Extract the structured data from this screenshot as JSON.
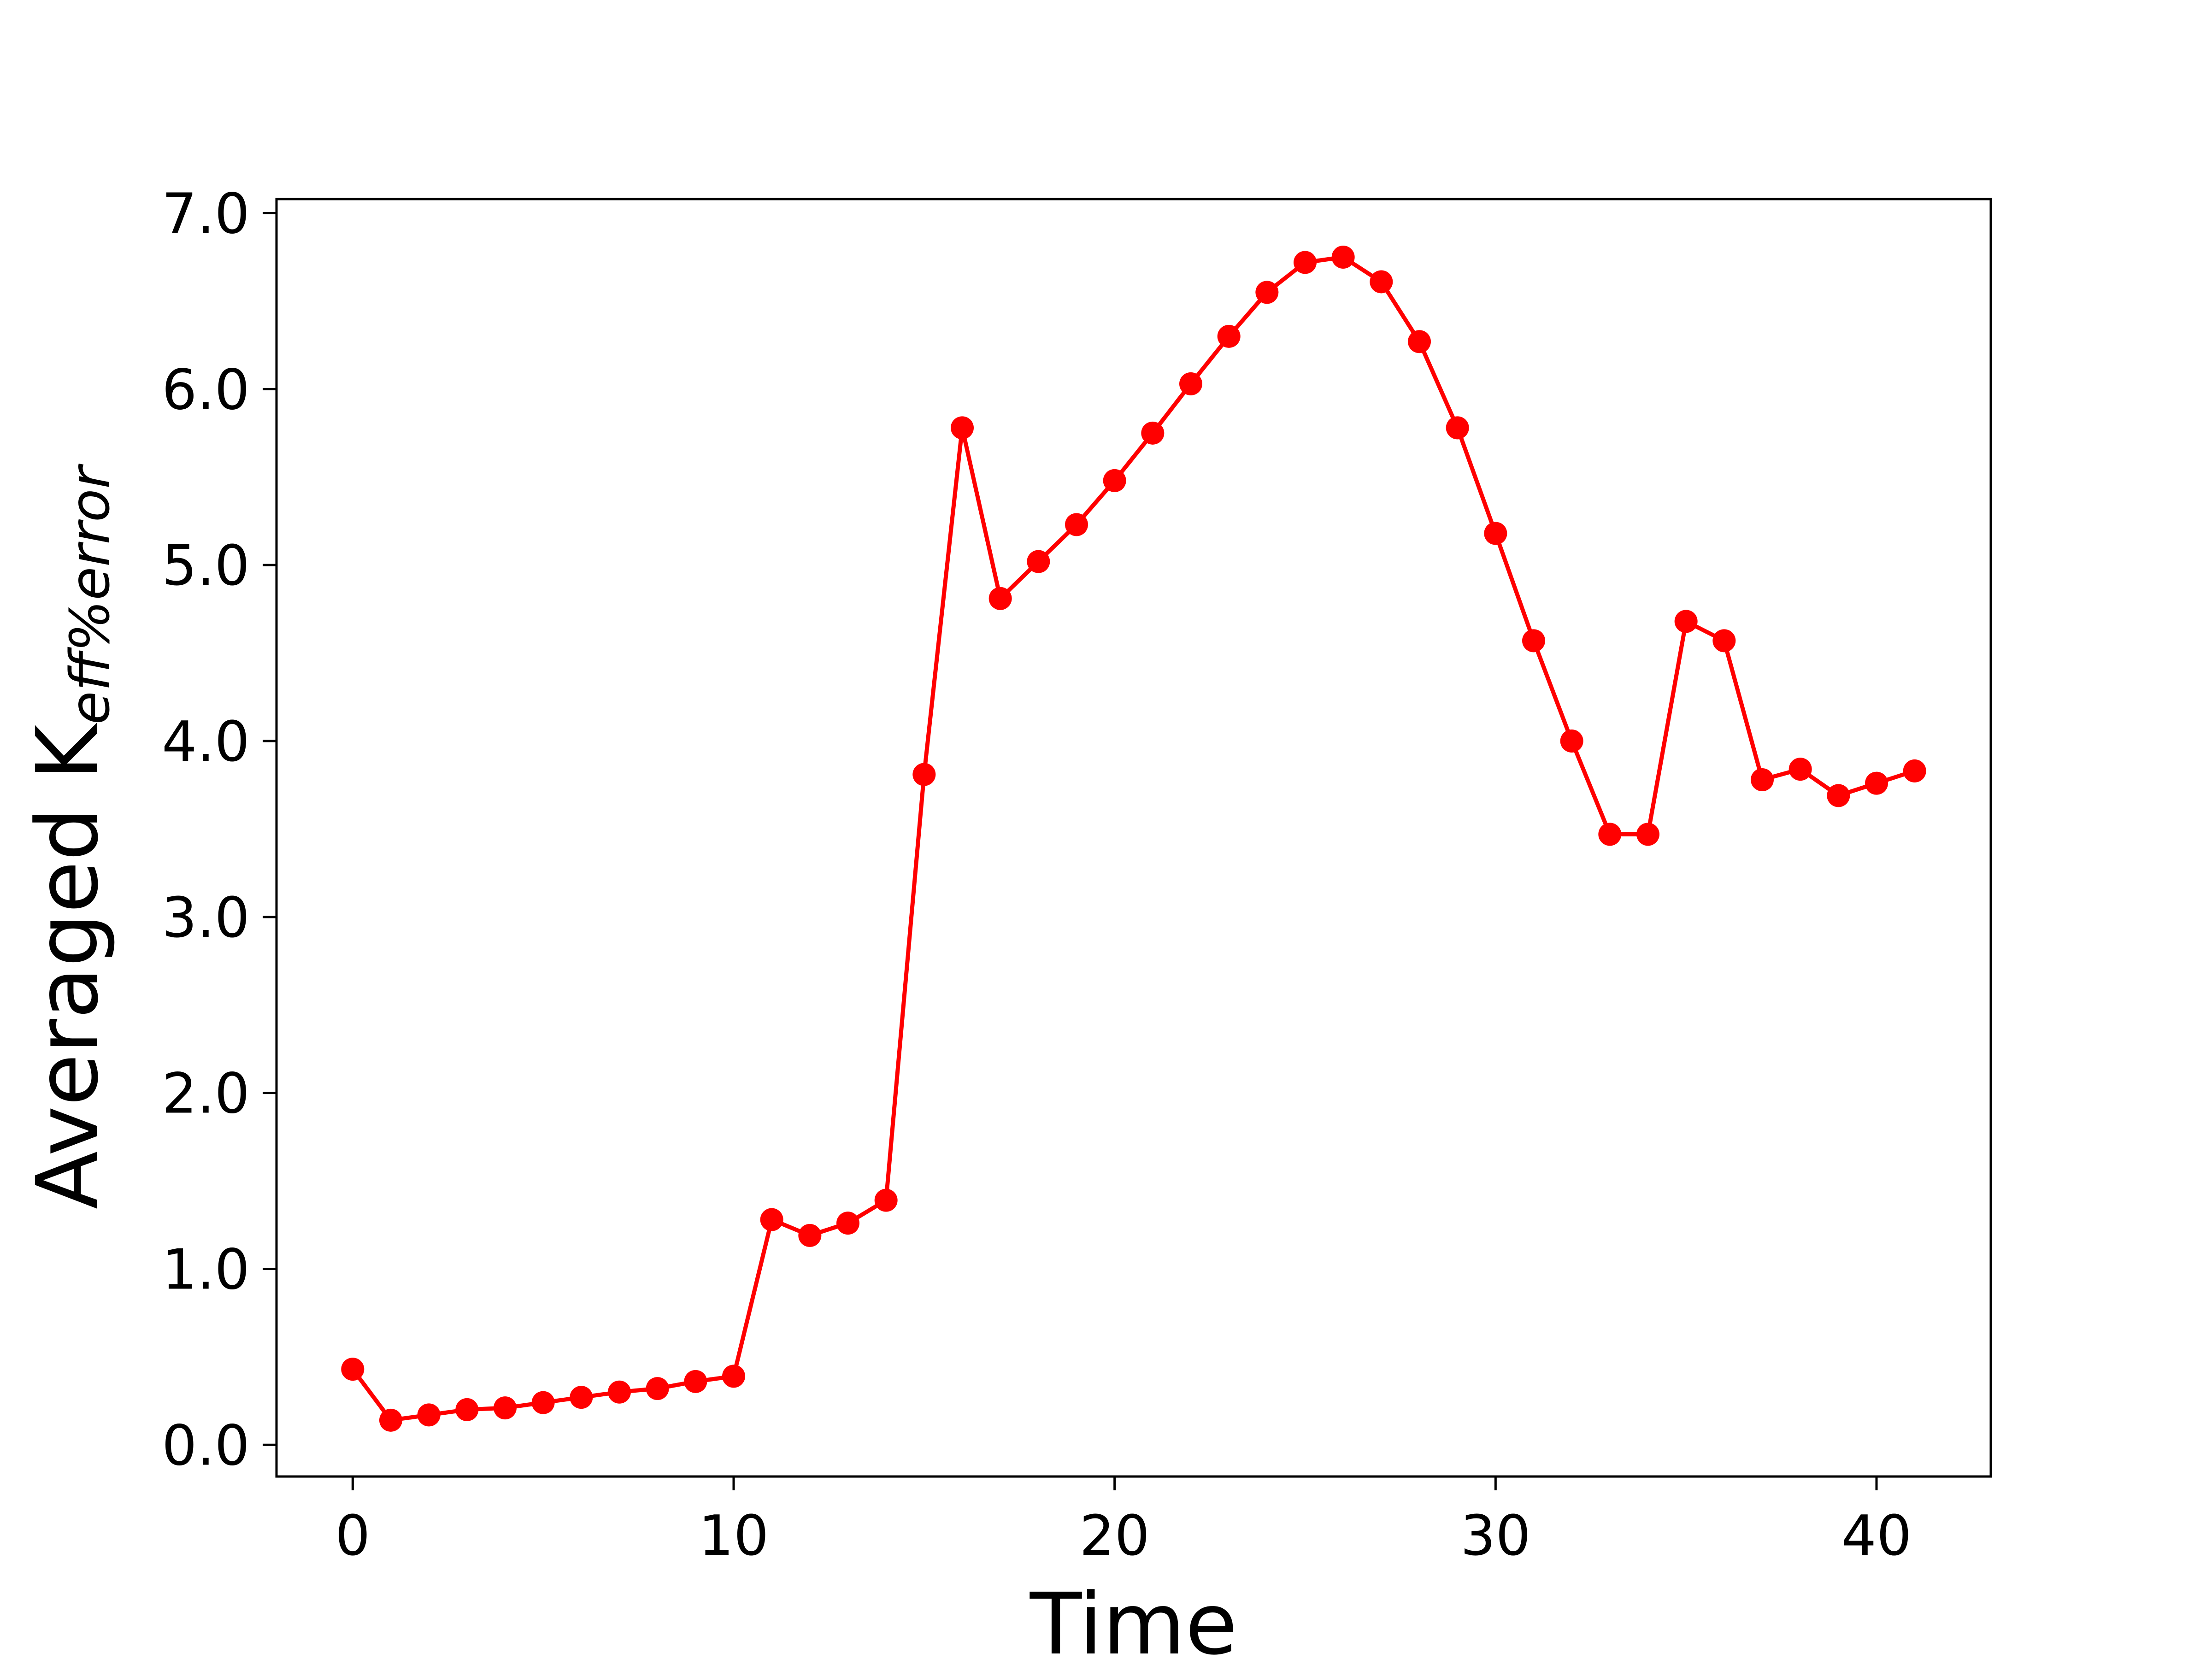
{
  "chart_data": {
    "type": "line",
    "xlabel": "Time",
    "ylabel": "Averaged K",
    "ylabel_subscript": "eff%error",
    "xlim": [
      -2,
      43
    ],
    "ylim": [
      -0.18,
      7.08
    ],
    "xticks": [
      0,
      10,
      20,
      30,
      40
    ],
    "xtick_labels": [
      "0",
      "10",
      "20",
      "30",
      "40"
    ],
    "yticks": [
      0,
      1,
      2,
      3,
      4,
      5,
      6,
      7
    ],
    "ytick_labels": [
      "0.0",
      "1.0",
      "2.0",
      "3.0",
      "4.0",
      "5.0",
      "6.0",
      "7.0"
    ],
    "grid": false,
    "color": "#ff0000",
    "series": [
      {
        "marker": "circle",
        "x": [
          0,
          1,
          2,
          3,
          4,
          5,
          6,
          7,
          8,
          9,
          10,
          11,
          12,
          13,
          14,
          15,
          16,
          17,
          18,
          19,
          20,
          21,
          22,
          23,
          24,
          25,
          26,
          27,
          28,
          29,
          30,
          31,
          32,
          33,
          34,
          35,
          36,
          37,
          38,
          39,
          40,
          41
        ],
        "y": [
          0.43,
          0.14,
          0.17,
          0.2,
          0.21,
          0.24,
          0.27,
          0.3,
          0.32,
          0.36,
          0.39,
          1.28,
          1.19,
          1.26,
          1.39,
          3.81,
          5.78,
          4.81,
          5.02,
          5.23,
          5.48,
          5.75,
          6.03,
          6.3,
          6.55,
          6.72,
          6.75,
          6.61,
          6.27,
          5.78,
          5.18,
          4.57,
          4.0,
          3.47,
          3.47,
          4.68,
          4.57,
          3.78,
          3.84,
          3.69,
          3.76,
          3.83
        ]
      }
    ]
  }
}
